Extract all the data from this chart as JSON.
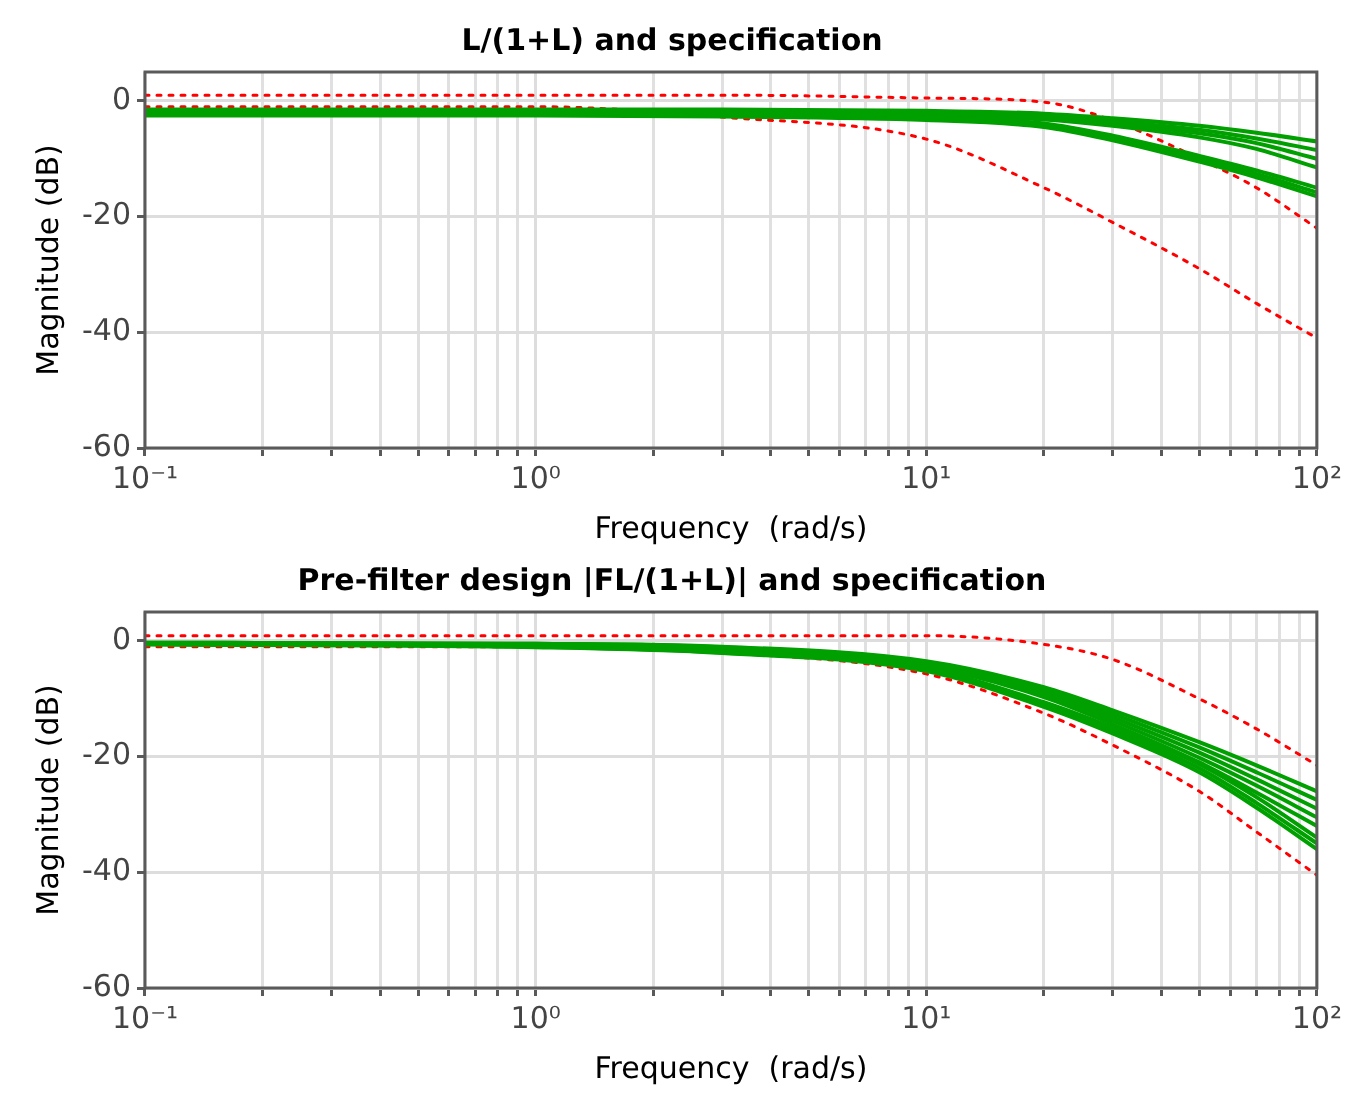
{
  "chart_data": [
    {
      "type": "line",
      "title": "L/(1+L) and specification",
      "xlabel": "Frequency  (rad/s)",
      "ylabel": "Magnitude (dB)",
      "log": "x",
      "grid": true,
      "legend": false,
      "marker": "none",
      "x": [
        0.1,
        1,
        3,
        10,
        20,
        30,
        50,
        70,
        100
      ],
      "xlim": [
        0.1,
        100
      ],
      "ylim": [
        -60,
        5
      ],
      "xticks": [
        {
          "value": 0.1,
          "label": "10⁻¹"
        },
        {
          "value": 0.2,
          "label": null
        },
        {
          "value": 0.3,
          "label": null
        },
        {
          "value": 0.4,
          "label": null
        },
        {
          "value": 0.5,
          "label": null
        },
        {
          "value": 0.6,
          "label": null
        },
        {
          "value": 0.7,
          "label": null
        },
        {
          "value": 0.8,
          "label": null
        },
        {
          "value": 0.9,
          "label": null
        },
        {
          "value": 1,
          "label": "10⁰"
        },
        {
          "value": 2,
          "label": null
        },
        {
          "value": 3,
          "label": null
        },
        {
          "value": 4,
          "label": null
        },
        {
          "value": 5,
          "label": null
        },
        {
          "value": 6,
          "label": null
        },
        {
          "value": 7,
          "label": null
        },
        {
          "value": 8,
          "label": null
        },
        {
          "value": 9,
          "label": null
        },
        {
          "value": 10,
          "label": "10¹"
        },
        {
          "value": 20,
          "label": null
        },
        {
          "value": 30,
          "label": null
        },
        {
          "value": 40,
          "label": null
        },
        {
          "value": 50,
          "label": null
        },
        {
          "value": 60,
          "label": null
        },
        {
          "value": 70,
          "label": null
        },
        {
          "value": 80,
          "label": null
        },
        {
          "value": 90,
          "label": null
        },
        {
          "value": 100,
          "label": "10²"
        }
      ],
      "yticks": [
        -60,
        -40,
        -20,
        0
      ],
      "series": [
        {
          "color": "#00a000",
          "line_style": "solid",
          "values": [
            -1.5,
            -1.5,
            -1.5,
            -1.7,
            -2.2,
            -3,
            -4.3,
            -5.5,
            -7
          ]
        },
        {
          "color": "#00a000",
          "line_style": "solid",
          "values": [
            -1.8,
            -1.8,
            -1.8,
            -2,
            -2.6,
            -3.5,
            -5,
            -6.5,
            -8.5
          ]
        },
        {
          "color": "#00a000",
          "line_style": "solid",
          "values": [
            -2,
            -2,
            -2,
            -2.2,
            -2.9,
            -3.9,
            -5.6,
            -7.3,
            -10
          ]
        },
        {
          "color": "#00a000",
          "line_style": "solid",
          "values": [
            -2.2,
            -2.2,
            -2.3,
            -2.5,
            -3.2,
            -4.3,
            -6.3,
            -8.3,
            -11.5
          ]
        },
        {
          "color": "#00a000",
          "line_style": "solid",
          "values": [
            -2,
            -2,
            -2.2,
            -2.8,
            -3.9,
            -6,
            -9.5,
            -12,
            -15
          ]
        },
        {
          "color": "#00a000",
          "line_style": "solid",
          "values": [
            -2.2,
            -2.2,
            -2.4,
            -3,
            -4.2,
            -6.4,
            -10,
            -12.6,
            -15.8
          ]
        },
        {
          "color": "#00a000",
          "line_style": "solid",
          "values": [
            -2.5,
            -2.5,
            -2.7,
            -3.3,
            -4.5,
            -6.8,
            -10.5,
            -13.2,
            -16.5
          ]
        },
        {
          "color": "#ff0000",
          "line_style": "dotted",
          "values": [
            1,
            1,
            1,
            0.5,
            -0.2,
            -3.4,
            -10,
            -15,
            -22
          ]
        },
        {
          "color": "#ff0000",
          "line_style": "dotted",
          "values": [
            -1,
            -1,
            -2.8,
            -6.6,
            -15,
            -21,
            -29,
            -35,
            -41
          ]
        }
      ]
    },
    {
      "type": "line",
      "title": "Pre-filter design |FL/(1+L)| and specification",
      "xlabel": "Frequency  (rad/s)",
      "ylabel": "Magnitude (dB)",
      "log": "x",
      "grid": true,
      "legend": false,
      "marker": "none",
      "x": [
        0.1,
        1,
        3,
        10,
        20,
        30,
        50,
        70,
        100
      ],
      "xlim": [
        0.1,
        100
      ],
      "ylim": [
        -60,
        5
      ],
      "xticks": [
        {
          "value": 0.1,
          "label": "10⁻¹"
        },
        {
          "value": 0.2,
          "label": null
        },
        {
          "value": 0.3,
          "label": null
        },
        {
          "value": 0.4,
          "label": null
        },
        {
          "value": 0.5,
          "label": null
        },
        {
          "value": 0.6,
          "label": null
        },
        {
          "value": 0.7,
          "label": null
        },
        {
          "value": 0.8,
          "label": null
        },
        {
          "value": 0.9,
          "label": null
        },
        {
          "value": 1,
          "label": "10⁰"
        },
        {
          "value": 2,
          "label": null
        },
        {
          "value": 3,
          "label": null
        },
        {
          "value": 4,
          "label": null
        },
        {
          "value": 5,
          "label": null
        },
        {
          "value": 6,
          "label": null
        },
        {
          "value": 7,
          "label": null
        },
        {
          "value": 8,
          "label": null
        },
        {
          "value": 9,
          "label": null
        },
        {
          "value": 10,
          "label": "10¹"
        },
        {
          "value": 20,
          "label": null
        },
        {
          "value": 30,
          "label": null
        },
        {
          "value": 40,
          "label": null
        },
        {
          "value": 50,
          "label": null
        },
        {
          "value": 60,
          "label": null
        },
        {
          "value": 70,
          "label": null
        },
        {
          "value": 80,
          "label": null
        },
        {
          "value": 90,
          "label": null
        },
        {
          "value": 100,
          "label": "10²"
        }
      ],
      "yticks": [
        -60,
        -40,
        -20,
        0
      ],
      "series": [
        {
          "color": "#00a000",
          "line_style": "solid",
          "values": [
            -0.3,
            -0.5,
            -1,
            -3.5,
            -8,
            -12,
            -17.5,
            -21.5,
            -26
          ]
        },
        {
          "color": "#00a000",
          "line_style": "solid",
          "values": [
            -0.3,
            -0.5,
            -1.1,
            -3.7,
            -8.4,
            -12.6,
            -18.4,
            -22.7,
            -27.5
          ]
        },
        {
          "color": "#00a000",
          "line_style": "solid",
          "values": [
            -0.4,
            -0.6,
            -1.2,
            -3.9,
            -8.8,
            -13.2,
            -19.3,
            -23.9,
            -29
          ]
        },
        {
          "color": "#00a000",
          "line_style": "solid",
          "values": [
            -0.4,
            -0.6,
            -1.3,
            -4.1,
            -9.2,
            -13.8,
            -20.2,
            -25,
            -30.5
          ]
        },
        {
          "color": "#00a000",
          "line_style": "solid",
          "values": [
            -0.4,
            -0.7,
            -1.4,
            -4.4,
            -9.7,
            -14.4,
            -21,
            -26.2,
            -32
          ]
        },
        {
          "color": "#00a000",
          "line_style": "solid",
          "values": [
            -0.5,
            -0.9,
            -1.8,
            -4.8,
            -10.6,
            -15,
            -21.3,
            -27,
            -34
          ]
        },
        {
          "color": "#00a000",
          "line_style": "solid",
          "values": [
            -0.5,
            -1,
            -2,
            -5,
            -11,
            -15.5,
            -22,
            -28,
            -35
          ]
        },
        {
          "color": "#00a000",
          "line_style": "solid",
          "values": [
            -0.6,
            -1.1,
            -2.1,
            -5.2,
            -11.4,
            -16,
            -22.7,
            -28.8,
            -36
          ]
        },
        {
          "color": "#ff0000",
          "line_style": "dotted",
          "values": [
            0.9,
            0.9,
            0.9,
            0.9,
            -0.6,
            -3.2,
            -10,
            -15.2,
            -21.5
          ]
        },
        {
          "color": "#ff0000",
          "line_style": "dotted",
          "values": [
            -1,
            -1,
            -2,
            -5.7,
            -12.5,
            -18,
            -26,
            -33,
            -40.5
          ]
        }
      ]
    }
  ]
}
